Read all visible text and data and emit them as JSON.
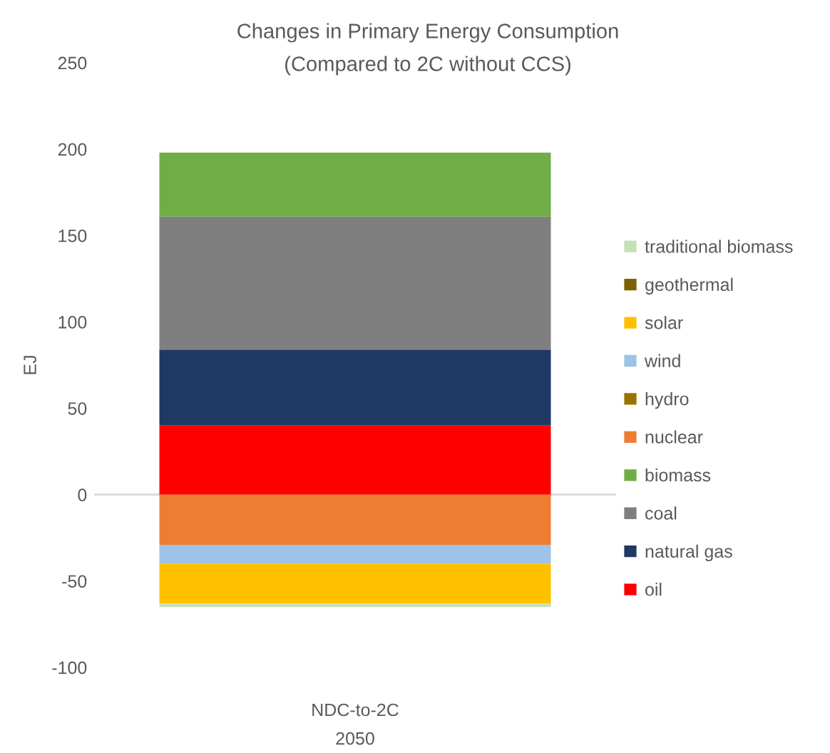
{
  "chart_data": {
    "type": "bar",
    "stacked": true,
    "title": "Changes in Primary Energy Consumption",
    "subtitle": "(Compared to 2C without CCS)",
    "ylabel": "EJ",
    "xlabel": "2050",
    "categories": [
      "NDC-to-2C"
    ],
    "series": [
      {
        "name": "oil",
        "color": "#ff0000",
        "values": [
          40
        ]
      },
      {
        "name": "natural gas",
        "color": "#203864",
        "values": [
          44
        ]
      },
      {
        "name": "coal",
        "color": "#7f7f7f",
        "values": [
          77
        ]
      },
      {
        "name": "biomass",
        "color": "#70ad47",
        "values": [
          37
        ]
      },
      {
        "name": "nuclear",
        "color": "#ed7d31",
        "values": [
          -29
        ]
      },
      {
        "name": "hydro",
        "color": "#997300",
        "values": [
          0
        ]
      },
      {
        "name": "wind",
        "color": "#9dc3e6",
        "values": [
          -11
        ]
      },
      {
        "name": "solar",
        "color": "#ffc000",
        "values": [
          -23
        ]
      },
      {
        "name": "geothermal",
        "color": "#7f6000",
        "values": [
          0
        ]
      },
      {
        "name": "traditional biomass",
        "color": "#c5e0b4",
        "values": [
          -2
        ]
      }
    ],
    "ylim": [
      -100,
      250
    ],
    "yticks": [
      -100,
      -50,
      0,
      50,
      100,
      150,
      200,
      250
    ],
    "ref_lines": [
      {
        "axis": "y",
        "value": 0,
        "color": "#d9d9d9"
      }
    ],
    "legend": "right"
  }
}
